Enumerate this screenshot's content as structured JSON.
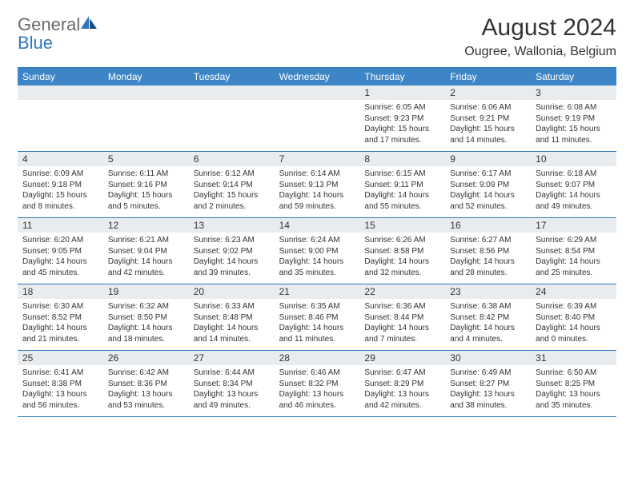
{
  "brand": {
    "part1": "General",
    "part2": "Blue"
  },
  "title": "August 2024",
  "location": "Ougree, Wallonia, Belgium",
  "colors": {
    "header_bg": "#3d85c6",
    "border": "#2d78bd",
    "daynum_bg": "#e9ecef",
    "text": "#333333",
    "logo_gray": "#6a6a6a",
    "logo_blue": "#2d78bd",
    "page_bg": "#ffffff"
  },
  "day_names": [
    "Sunday",
    "Monday",
    "Tuesday",
    "Wednesday",
    "Thursday",
    "Friday",
    "Saturday"
  ],
  "weeks": [
    [
      null,
      null,
      null,
      null,
      {
        "n": "1",
        "sr": "6:05 AM",
        "ss": "9:23 PM",
        "dl": "15 hours and 17 minutes."
      },
      {
        "n": "2",
        "sr": "6:06 AM",
        "ss": "9:21 PM",
        "dl": "15 hours and 14 minutes."
      },
      {
        "n": "3",
        "sr": "6:08 AM",
        "ss": "9:19 PM",
        "dl": "15 hours and 11 minutes."
      }
    ],
    [
      {
        "n": "4",
        "sr": "6:09 AM",
        "ss": "9:18 PM",
        "dl": "15 hours and 8 minutes."
      },
      {
        "n": "5",
        "sr": "6:11 AM",
        "ss": "9:16 PM",
        "dl": "15 hours and 5 minutes."
      },
      {
        "n": "6",
        "sr": "6:12 AM",
        "ss": "9:14 PM",
        "dl": "15 hours and 2 minutes."
      },
      {
        "n": "7",
        "sr": "6:14 AM",
        "ss": "9:13 PM",
        "dl": "14 hours and 59 minutes."
      },
      {
        "n": "8",
        "sr": "6:15 AM",
        "ss": "9:11 PM",
        "dl": "14 hours and 55 minutes."
      },
      {
        "n": "9",
        "sr": "6:17 AM",
        "ss": "9:09 PM",
        "dl": "14 hours and 52 minutes."
      },
      {
        "n": "10",
        "sr": "6:18 AM",
        "ss": "9:07 PM",
        "dl": "14 hours and 49 minutes."
      }
    ],
    [
      {
        "n": "11",
        "sr": "6:20 AM",
        "ss": "9:05 PM",
        "dl": "14 hours and 45 minutes."
      },
      {
        "n": "12",
        "sr": "6:21 AM",
        "ss": "9:04 PM",
        "dl": "14 hours and 42 minutes."
      },
      {
        "n": "13",
        "sr": "6:23 AM",
        "ss": "9:02 PM",
        "dl": "14 hours and 39 minutes."
      },
      {
        "n": "14",
        "sr": "6:24 AM",
        "ss": "9:00 PM",
        "dl": "14 hours and 35 minutes."
      },
      {
        "n": "15",
        "sr": "6:26 AM",
        "ss": "8:58 PM",
        "dl": "14 hours and 32 minutes."
      },
      {
        "n": "16",
        "sr": "6:27 AM",
        "ss": "8:56 PM",
        "dl": "14 hours and 28 minutes."
      },
      {
        "n": "17",
        "sr": "6:29 AM",
        "ss": "8:54 PM",
        "dl": "14 hours and 25 minutes."
      }
    ],
    [
      {
        "n": "18",
        "sr": "6:30 AM",
        "ss": "8:52 PM",
        "dl": "14 hours and 21 minutes."
      },
      {
        "n": "19",
        "sr": "6:32 AM",
        "ss": "8:50 PM",
        "dl": "14 hours and 18 minutes."
      },
      {
        "n": "20",
        "sr": "6:33 AM",
        "ss": "8:48 PM",
        "dl": "14 hours and 14 minutes."
      },
      {
        "n": "21",
        "sr": "6:35 AM",
        "ss": "8:46 PM",
        "dl": "14 hours and 11 minutes."
      },
      {
        "n": "22",
        "sr": "6:36 AM",
        "ss": "8:44 PM",
        "dl": "14 hours and 7 minutes."
      },
      {
        "n": "23",
        "sr": "6:38 AM",
        "ss": "8:42 PM",
        "dl": "14 hours and 4 minutes."
      },
      {
        "n": "24",
        "sr": "6:39 AM",
        "ss": "8:40 PM",
        "dl": "14 hours and 0 minutes."
      }
    ],
    [
      {
        "n": "25",
        "sr": "6:41 AM",
        "ss": "8:38 PM",
        "dl": "13 hours and 56 minutes."
      },
      {
        "n": "26",
        "sr": "6:42 AM",
        "ss": "8:36 PM",
        "dl": "13 hours and 53 minutes."
      },
      {
        "n": "27",
        "sr": "6:44 AM",
        "ss": "8:34 PM",
        "dl": "13 hours and 49 minutes."
      },
      {
        "n": "28",
        "sr": "6:46 AM",
        "ss": "8:32 PM",
        "dl": "13 hours and 46 minutes."
      },
      {
        "n": "29",
        "sr": "6:47 AM",
        "ss": "8:29 PM",
        "dl": "13 hours and 42 minutes."
      },
      {
        "n": "30",
        "sr": "6:49 AM",
        "ss": "8:27 PM",
        "dl": "13 hours and 38 minutes."
      },
      {
        "n": "31",
        "sr": "6:50 AM",
        "ss": "8:25 PM",
        "dl": "13 hours and 35 minutes."
      }
    ]
  ],
  "labels": {
    "sunrise": "Sunrise:",
    "sunset": "Sunset:",
    "daylight": "Daylight:"
  }
}
